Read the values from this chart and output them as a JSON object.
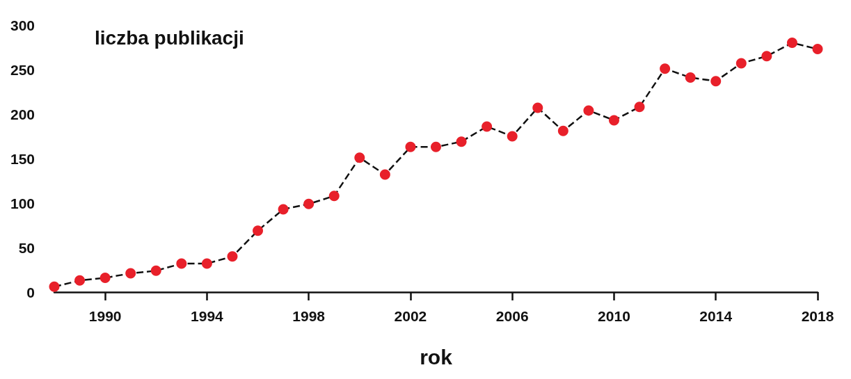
{
  "chart_data": {
    "type": "line",
    "ylabel": "liczba publikacji",
    "xlabel": "rok",
    "x": [
      1988,
      1989,
      1990,
      1991,
      1992,
      1993,
      1994,
      1995,
      1996,
      1997,
      1998,
      1999,
      2000,
      2001,
      2002,
      2003,
      2004,
      2005,
      2006,
      2007,
      2008,
      2009,
      2010,
      2011,
      2012,
      2013,
      2014,
      2015,
      2016,
      2017,
      2018
    ],
    "series": [
      {
        "color": "#e8202a",
        "values": [
          6,
          13,
          16,
          21,
          24,
          32,
          32,
          40,
          69,
          93,
          99,
          108,
          151,
          132,
          163,
          163,
          169,
          186,
          175,
          207,
          181,
          204,
          193,
          208,
          251,
          241,
          237,
          257,
          265,
          280,
          273
        ]
      }
    ],
    "xlim": [
      1988,
      2018
    ],
    "xticks": [
      1990,
      1994,
      1998,
      2002,
      2006,
      2010,
      2014,
      2018
    ],
    "ylim": [
      0,
      300
    ],
    "yticks": [
      0,
      50,
      100,
      150,
      200,
      250,
      300
    ],
    "grid": false,
    "marker": "circle",
    "line_style": "dashed"
  }
}
